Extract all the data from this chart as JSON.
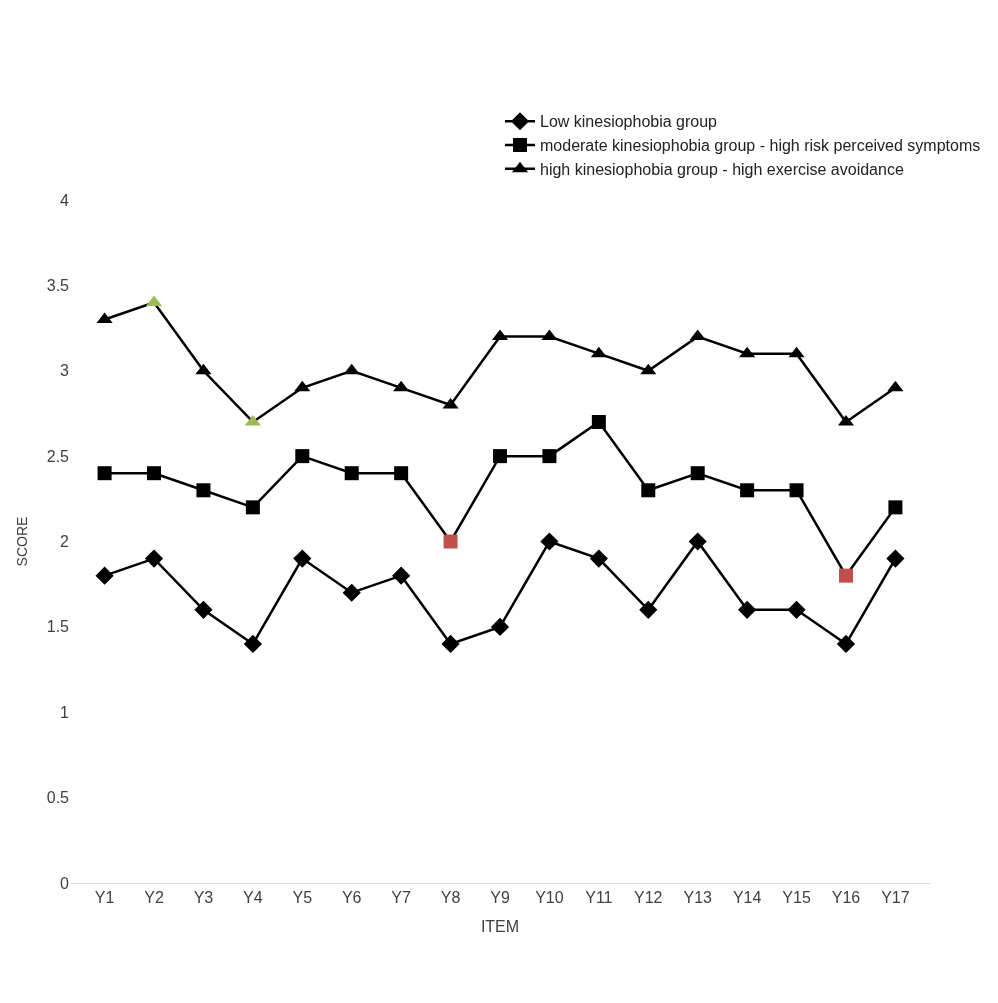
{
  "chart_data": {
    "type": "line",
    "xlabel": "ITEM",
    "ylabel": "SCORE",
    "categories": [
      "Y1",
      "Y2",
      "Y3",
      "Y4",
      "Y5",
      "Y6",
      "Y7",
      "Y8",
      "Y9",
      "Y10",
      "Y11",
      "Y12",
      "Y13",
      "Y14",
      "Y15",
      "Y16",
      "Y17"
    ],
    "series": [
      {
        "name": "Low kinesiophobia group",
        "color": "#000000",
        "marker": "diamond",
        "values": [
          1.8,
          1.9,
          1.6,
          1.4,
          1.9,
          1.7,
          1.8,
          1.4,
          1.5,
          2.0,
          1.9,
          1.6,
          2.0,
          1.6,
          1.6,
          1.4,
          1.9
        ]
      },
      {
        "name": "moderate kinesiophobia group - high risk perceived symptoms",
        "color": "#000000",
        "marker": "square",
        "colors": [
          "#000000",
          "#000000",
          "#000000",
          "#000000",
          "#000000",
          "#000000",
          "#000000",
          "#c0504d",
          "#000000",
          "#000000",
          "#000000",
          "#000000",
          "#000000",
          "#000000",
          "#000000",
          "#c0504d",
          "#000000"
        ],
        "values": [
          2.4,
          2.4,
          2.3,
          2.2,
          2.5,
          2.4,
          2.4,
          2.0,
          2.5,
          2.5,
          2.7,
          2.3,
          2.4,
          2.3,
          2.3,
          1.8,
          2.2
        ]
      },
      {
        "name": "high kinesiophobia group - high exercise avoidance",
        "color": "#000000",
        "marker": "triangle",
        "colors": [
          "#000000",
          "#9bbb59",
          "#000000",
          "#9bbb59",
          "#000000",
          "#000000",
          "#000000",
          "#000000",
          "#000000",
          "#000000",
          "#000000",
          "#000000",
          "#000000",
          "#000000",
          "#000000",
          "#000000",
          "#000000"
        ],
        "values": [
          3.3,
          3.4,
          3.0,
          2.7,
          2.9,
          3.0,
          2.9,
          2.8,
          3.2,
          3.2,
          3.1,
          3.0,
          3.2,
          3.1,
          3.1,
          2.7,
          2.9
        ]
      }
    ],
    "ylim": [
      0,
      4
    ],
    "yticks": [
      0,
      0.5,
      1,
      1.5,
      2,
      2.5,
      3,
      3.5,
      4
    ],
    "grid": false,
    "legend": "top right",
    "line_style": "solid"
  }
}
